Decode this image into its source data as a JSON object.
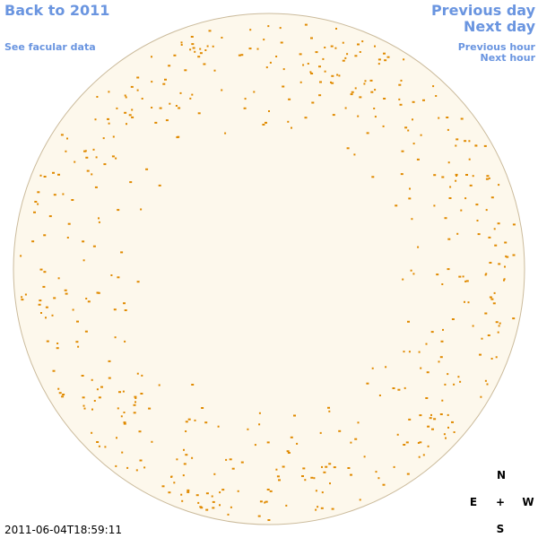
{
  "links": {
    "back_year": "Back to 2011",
    "facular_data": "See facular data",
    "previous_day": "Previous day",
    "next_day": "Next day",
    "previous_hour": "Previous hour",
    "next_hour": "Next hour"
  },
  "timestamp": "2011-06-04T18:59:11",
  "compass": {
    "north": "N",
    "east": "E",
    "center": "+",
    "west": "W",
    "south": "S"
  }
}
